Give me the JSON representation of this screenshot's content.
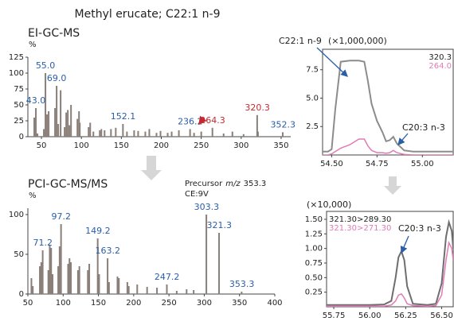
{
  "title": "Methyl erucate; C22:1 n-9",
  "chart_data": [
    {
      "type": "bar",
      "title": "EI-GC-MS",
      "y_unit": "%",
      "color": "#8a7f78",
      "x": [
        41,
        43,
        45,
        53,
        55,
        57,
        59,
        67,
        69,
        71,
        74,
        79,
        81,
        83,
        85,
        87,
        95,
        97,
        98,
        109,
        111,
        115,
        123,
        125,
        129,
        137,
        143,
        152,
        157,
        166,
        171,
        180,
        185,
        194,
        199,
        208,
        213,
        222,
        236,
        241,
        250,
        264,
        278,
        289,
        303,
        320,
        321,
        352
      ],
      "values": [
        30,
        45,
        5,
        12,
        100,
        35,
        40,
        45,
        80,
        20,
        73,
        15,
        38,
        42,
        18,
        50,
        28,
        40,
        22,
        15,
        22,
        8,
        10,
        12,
        10,
        12,
        14,
        20,
        8,
        10,
        9,
        8,
        12,
        6,
        9,
        6,
        8,
        10,
        12,
        6,
        8,
        14,
        5,
        8,
        4,
        34,
        8,
        7
      ],
      "peak_labels": [
        {
          "value": 43.0,
          "label": "43.0",
          "color": "#2a5ea8"
        },
        {
          "value": 55.0,
          "label": "55.0",
          "color": "#2a5ea8"
        },
        {
          "value": 69.0,
          "label": "69.0",
          "color": "#2a5ea8"
        },
        {
          "value": 152.1,
          "label": "152.1",
          "color": "#2a5ea8"
        },
        {
          "value": 236.2,
          "label": "236.2",
          "color": "#2a5ea8"
        },
        {
          "value": 264.3,
          "label": "264.3",
          "color": "#c8282d"
        },
        {
          "value": 320.3,
          "label": "320.3",
          "color": "#c8282d"
        },
        {
          "value": 352.3,
          "label": "352.3",
          "color": "#2a5ea8"
        }
      ],
      "xlim": [
        33,
        362
      ],
      "xticks": [
        50,
        100,
        150,
        200,
        250,
        300,
        350
      ],
      "ylim": [
        0,
        125
      ],
      "yticks": [
        0,
        25,
        50,
        75,
        100,
        125
      ]
    },
    {
      "type": "bar",
      "title": "PCI-GC-MS/MS",
      "y_unit": "%",
      "color": "#8a7f78",
      "annotation": {
        "prefix": "Precursor",
        "mz": "m/z",
        "value": "353.3",
        "ce": "CE:9V"
      },
      "x": [
        55,
        57,
        67,
        69,
        71,
        79,
        81,
        83,
        85,
        93,
        95,
        97,
        107,
        109,
        111,
        121,
        123,
        135,
        137,
        149,
        151,
        163,
        165,
        177,
        179,
        191,
        193,
        205,
        219,
        233,
        247,
        261,
        275,
        285,
        303,
        321,
        353
      ],
      "values": [
        20,
        10,
        35,
        40,
        55,
        30,
        62,
        58,
        25,
        35,
        60,
        88,
        38,
        45,
        40,
        30,
        35,
        30,
        38,
        70,
        25,
        45,
        15,
        22,
        20,
        15,
        10,
        12,
        9,
        8,
        12,
        4,
        6,
        5,
        100,
        77,
        3
      ],
      "peak_labels": [
        {
          "value": 71.2,
          "label": "71.2",
          "color": "#2a5ea8"
        },
        {
          "value": 97.2,
          "label": "97.2",
          "color": "#2a5ea8"
        },
        {
          "value": 149.2,
          "label": "149.2",
          "color": "#2a5ea8"
        },
        {
          "value": 163.2,
          "label": "163.2",
          "color": "#2a5ea8"
        },
        {
          "value": 247.2,
          "label": "247.2",
          "color": "#2a5ea8"
        },
        {
          "value": 303.3,
          "label": "303.3",
          "color": "#2a5ea8"
        },
        {
          "value": 321.3,
          "label": "321.3",
          "color": "#2a5ea8"
        },
        {
          "value": 353.3,
          "label": "353.3",
          "color": "#2a5ea8"
        }
      ],
      "xlim": [
        50,
        400
      ],
      "xticks": [
        50,
        100,
        150,
        200,
        250,
        300,
        350,
        400
      ],
      "ylim": [
        0,
        108
      ],
      "yticks": [
        0,
        50,
        100
      ]
    },
    {
      "type": "line",
      "y_multiplier": "(×1,000,000)",
      "legend": "upper right",
      "annotations": [
        "C22:1 n-9",
        "C20:3 n-3"
      ],
      "x": [
        54.45,
        54.48,
        54.5,
        54.52,
        54.55,
        54.6,
        54.65,
        54.68,
        54.7,
        54.72,
        54.75,
        54.78,
        54.8,
        54.82,
        54.84,
        54.86,
        54.9,
        54.95,
        55.0,
        55.1,
        55.17
      ],
      "series": [
        {
          "name": "320.3",
          "color": "#8c8c8c",
          "values": [
            0.3,
            0.3,
            0.5,
            4,
            8.2,
            8.3,
            8.3,
            8.2,
            6.5,
            4.5,
            3.0,
            2.0,
            1.2,
            1.3,
            1.6,
            1.0,
            0.4,
            0.3,
            0.3,
            0.3,
            0.3
          ]
        },
        {
          "name": "264.0",
          "color": "#e07bb5",
          "values": [
            0,
            0,
            0.1,
            0.3,
            0.6,
            0.9,
            1.4,
            1.4,
            0.8,
            0.4,
            0.2,
            0.2,
            0.15,
            0.2,
            0.4,
            0.2,
            0.05,
            0,
            0,
            0,
            0
          ]
        }
      ],
      "xlim": [
        54.45,
        55.17
      ],
      "xticks": [
        {
          "value": 54.5,
          "label": "54.50"
        },
        54.75,
        {
          "value": 55.0,
          "label": "55.00"
        }
      ],
      "ylim": [
        0,
        9.3
      ],
      "yticks": [
        2.5,
        {
          "value": 5.0,
          "label": "5.0"
        },
        7.5
      ]
    },
    {
      "type": "line",
      "y_multiplier": "(×10,000)",
      "legend": "upper left",
      "annotations": [
        "C20:3 n-3"
      ],
      "x": [
        55.7,
        55.8,
        55.9,
        56.0,
        56.1,
        56.15,
        56.18,
        56.2,
        56.22,
        56.24,
        56.26,
        56.3,
        56.4,
        56.46,
        56.5,
        56.53,
        56.55,
        56.57,
        56.58
      ],
      "series": [
        {
          "name": "321.30>289.30",
          "color": "#6e6e6e",
          "values": [
            0.03,
            0.03,
            0.03,
            0.03,
            0.04,
            0.1,
            0.5,
            0.85,
            0.95,
            0.8,
            0.35,
            0.05,
            0.03,
            0.05,
            0.4,
            1.2,
            1.45,
            1.3,
            1.0
          ]
        },
        {
          "name": "321.30>271.30",
          "color": "#e07bb5",
          "values": [
            0.01,
            0.01,
            0.01,
            0.01,
            0.01,
            0.03,
            0.1,
            0.2,
            0.22,
            0.15,
            0.05,
            0.02,
            0.01,
            0.02,
            0.2,
            0.8,
            1.1,
            1.0,
            0.8
          ]
        }
      ],
      "xlim": [
        55.7,
        56.58
      ],
      "xticks": [
        55.75,
        {
          "value": 56.0,
          "label": "56.00"
        },
        56.25,
        {
          "value": 56.5,
          "label": "56.50"
        }
      ],
      "ylim": [
        0,
        1.636
      ],
      "yticks": [
        0.25,
        {
          "value": 0.5,
          "label": "0.50"
        },
        0.75,
        {
          "value": 1.0,
          "label": "1.00"
        },
        1.25,
        {
          "value": 1.5,
          "label": "1.50"
        }
      ]
    }
  ]
}
